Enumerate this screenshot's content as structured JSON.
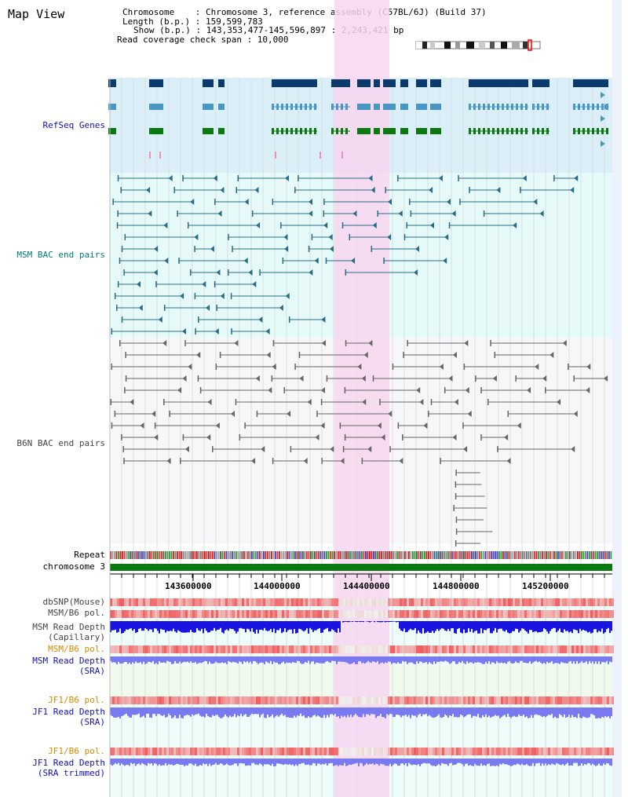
{
  "title": "Map View",
  "info": {
    "chromosome": "Chromosome    : Chromosome 3, reference assembly (C57BL/6J) (Build 37)",
    "length": "Length (b.p.) : 159,599,783",
    "show": "Show (b.p.) : 143,353,477-145,596,897 : 2,243,421 bp",
    "span": "Read coverage check span : 10,000"
  },
  "tracks": {
    "refseq": "RefSeq Genes",
    "msm_bac": "MSM BAC end pairs",
    "b6n_bac": "B6N BAC end pairs",
    "repeat": "Repeat",
    "chromosome": "chromosome 3",
    "dbsnp": "dbSNP(Mouse)",
    "msm_b6_pol_1": "MSM/B6 pol.",
    "msm_read_depth_1": "MSM Read Depth",
    "msm_read_depth_1_sub": "(Capillary)",
    "msm_b6_pol_2": "MSM/B6 pol.",
    "msm_read_depth_2": "MSM Read Depth",
    "msm_read_depth_2_sub": "(SRA)",
    "jf1_b6_pol_1": "JF1/B6 pol.",
    "jf1_read_depth_1": "JF1 Read Depth",
    "jf1_read_depth_1_sub": "(SRA)",
    "jf1_b6_pol_2": "JF1/B6 pol.",
    "jf1_read_depth_2": "JF1 Read Depth",
    "jf1_read_depth_2_sub": "(SRA trimmed)"
  },
  "axis_ticks": [
    "143600000",
    "144000000",
    "144400000",
    "144800000",
    "145200000"
  ],
  "colors": {
    "refseq_bg": "#dbeff9",
    "bac_bg": "#e6fbf9",
    "highlight": "#f7d6f0",
    "gene_dark": "#0b3a6f",
    "gene_mid": "#4a97c4",
    "gene_green": "#0a7a10",
    "msm_pair": "#2a6c88",
    "b6n_pair": "#666666",
    "chromosome_bar": "#0a7a10",
    "depth_dark": "#1a14e0",
    "depth_light": "#7a7af0",
    "pol_red": "#f06060"
  }
}
